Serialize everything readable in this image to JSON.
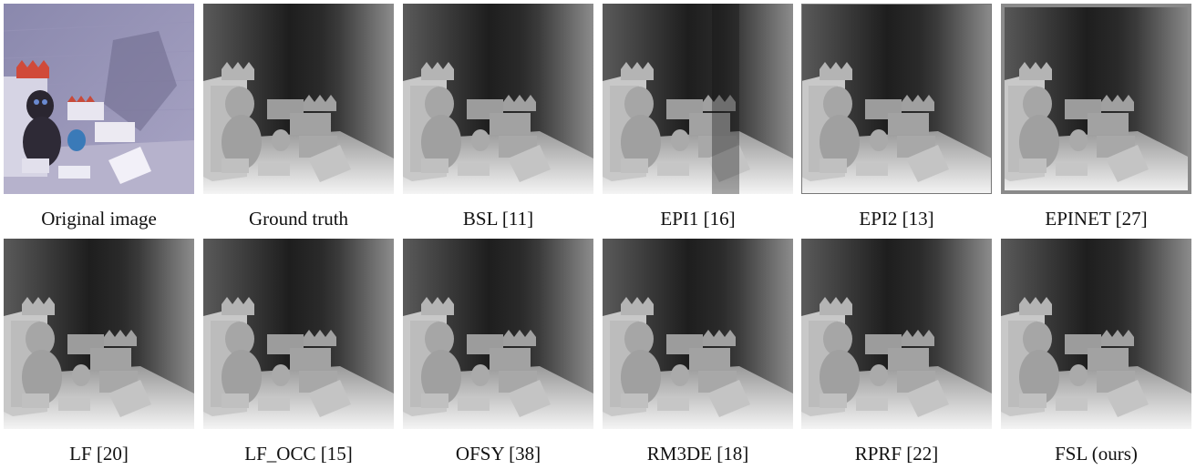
{
  "figure": {
    "panels": [
      {
        "caption": "Original image",
        "icon": "original-photo"
      },
      {
        "caption": "Ground truth",
        "icon": "depth-map"
      },
      {
        "caption": "BSL [11]",
        "icon": "depth-map"
      },
      {
        "caption": "EPI1 [16]",
        "icon": "depth-map"
      },
      {
        "caption": "EPI2 [13]",
        "icon": "depth-map"
      },
      {
        "caption": "EPINET [27]",
        "icon": "depth-map"
      },
      {
        "caption": "LF [20]",
        "icon": "depth-map"
      },
      {
        "caption": "LF_OCC [15]",
        "icon": "depth-map"
      },
      {
        "caption": "OFSY [38]",
        "icon": "depth-map"
      },
      {
        "caption": "RM3DE [18]",
        "icon": "depth-map"
      },
      {
        "caption": "RPRF [22]",
        "icon": "depth-map"
      },
      {
        "caption": "FSL (ours)",
        "icon": "depth-map"
      }
    ]
  }
}
